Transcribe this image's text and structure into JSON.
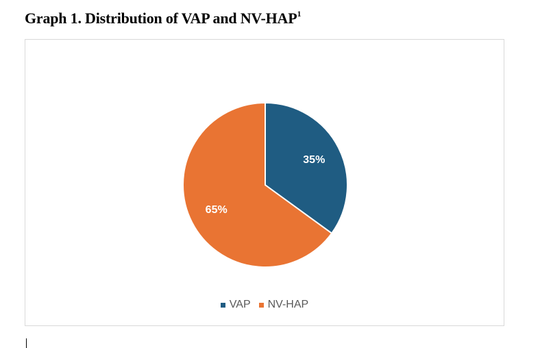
{
  "title": {
    "text": "Graph 1. Distribution of VAP and NV-HAP",
    "superscript": "1"
  },
  "chart_data": {
    "type": "pie",
    "title": "",
    "categories": [
      "VAP",
      "NV-HAP"
    ],
    "values": [
      35,
      65
    ],
    "labels": [
      "35%",
      "65%"
    ],
    "colors": [
      "#1f5c82",
      "#e97433"
    ],
    "legend": "bottom"
  }
}
